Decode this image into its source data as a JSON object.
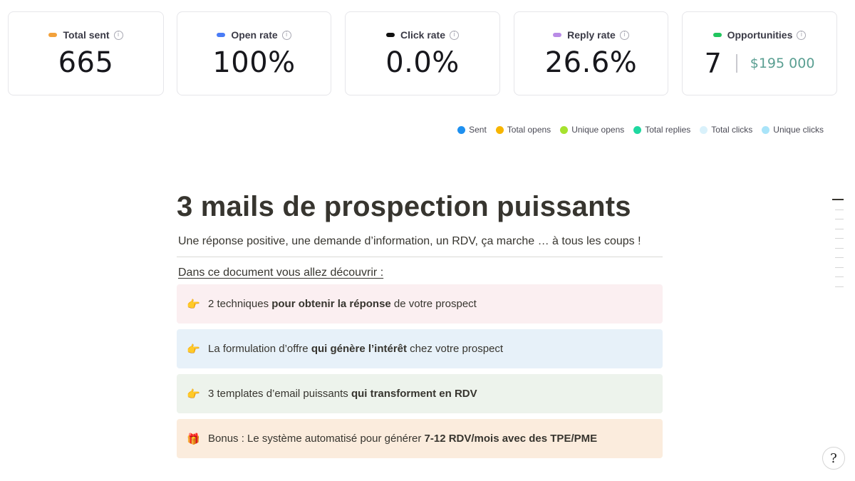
{
  "stats": [
    {
      "label": "Total sent",
      "value": "665",
      "color": "#f2a13b"
    },
    {
      "label": "Open rate",
      "value": "100%",
      "color": "#4a7cf6"
    },
    {
      "label": "Click rate",
      "value": "0.0%",
      "color": "#111111"
    },
    {
      "label": "Reply rate",
      "value": "26.6%",
      "color": "#b98be6"
    },
    {
      "label": "Opportunities",
      "count": "7",
      "amount": "$195 000",
      "color": "#22c55e"
    }
  ],
  "info_glyph": "i",
  "legend": [
    {
      "label": "Sent",
      "color": "#1e90f0"
    },
    {
      "label": "Total opens",
      "color": "#f7b500"
    },
    {
      "label": "Unique opens",
      "color": "#a6e22e"
    },
    {
      "label": "Total replies",
      "color": "#1fd8a0"
    },
    {
      "label": "Total clicks",
      "color": "#d9f1fb"
    },
    {
      "label": "Unique clicks",
      "color": "#a9e4f9"
    }
  ],
  "doc": {
    "title": "3 mails de prospection puissants",
    "subtitle": "Une réponse positive, une demande d’information, un RDV, ça marche … à tous les coups !",
    "intro": "Dans ce document vous allez découvrir :",
    "callouts": [
      {
        "emoji": "👉",
        "bg": "#fbeff1",
        "pre": "2 techniques ",
        "bold": "pour obtenir la réponse",
        "post": " de votre prospect"
      },
      {
        "emoji": "👉",
        "bg": "#e7f1f9",
        "pre": "La formulation d’offre ",
        "bold": "qui génère l’intérêt",
        "post": " chez votre prospect"
      },
      {
        "emoji": "👉",
        "bg": "#edf3ec",
        "pre": "3 templates d’email puissants ",
        "bold": "qui transforment en RDV",
        "post": ""
      },
      {
        "emoji": "🎁",
        "bg": "#fbecdd",
        "pre": "Bonus : Le système automatisé pour générer ",
        "bold": "7-12 RDV/mois avec des TPE/PME",
        "post": ""
      }
    ]
  },
  "help_glyph": "?"
}
